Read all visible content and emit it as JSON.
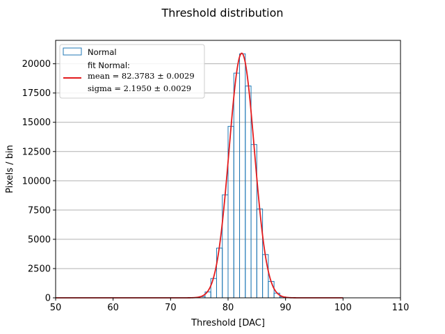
{
  "chart_data": {
    "type": "bar",
    "title": "Threshold distribution",
    "xlabel": "Threshold [DAC]",
    "ylabel": "Pixels / bin",
    "xlim": [
      50,
      110
    ],
    "ylim": [
      0,
      22000
    ],
    "x_ticks": [
      50,
      60,
      70,
      80,
      90,
      100,
      110
    ],
    "y_ticks": [
      0,
      2500,
      5000,
      7500,
      10000,
      12500,
      15000,
      17500,
      20000
    ],
    "grid": "horizontal",
    "legend_placement": "top-left",
    "histogram": {
      "name": "Normal",
      "color": "#1f77b4",
      "bin_edges": [
        75,
        76,
        77,
        78,
        79,
        80,
        81,
        82,
        83,
        84,
        85,
        86,
        87,
        88,
        89,
        90
      ],
      "counts": [
        100,
        500,
        1650,
        4250,
        8800,
        14650,
        19200,
        20850,
        18100,
        13100,
        7600,
        3700,
        1400,
        400,
        80
      ]
    },
    "fit": {
      "name": "fit Normal:",
      "color": "#e31a1c",
      "amplitude": 20900,
      "mean_value": 82.3783,
      "sigma_value": 2.195,
      "x_range": [
        50,
        100
      ],
      "mean_label": "mean = 82.3783 ± 0.0029",
      "sigma_label": "sigma = 2.1950 ± 0.0029"
    }
  }
}
